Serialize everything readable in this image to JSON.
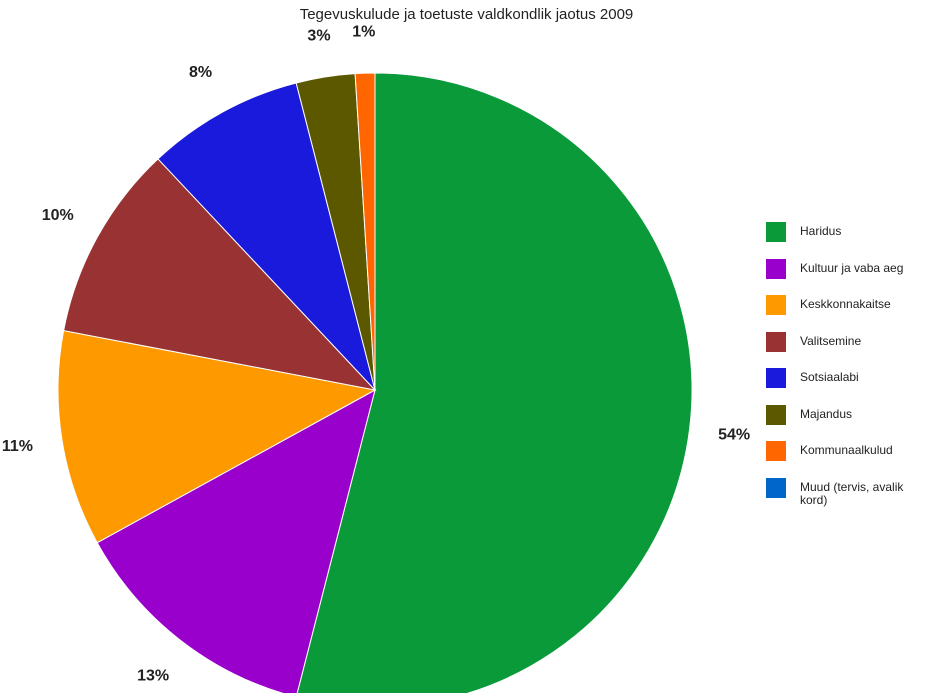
{
  "chart_data": {
    "type": "pie",
    "title": "Tegevuskulude ja toetuste valdkondlik jaotus 2009",
    "legend_position": "right",
    "slices": [
      {
        "label": "Haridus",
        "value": 54,
        "display": "54%",
        "color": "#0a9a3a"
      },
      {
        "label": "Kultuur ja vaba aeg",
        "value": 13,
        "display": "13%",
        "color": "#9900cc"
      },
      {
        "label": "Keskkonnakaitse",
        "value": 11,
        "display": "11%",
        "color": "#ff9900"
      },
      {
        "label": "Valitsemine",
        "value": 10,
        "display": "10%",
        "color": "#993333"
      },
      {
        "label": "Sotsiaalabi",
        "value": 8,
        "display": "8%",
        "color": "#1a1adc"
      },
      {
        "label": "Majandus",
        "value": 3,
        "display": "3%",
        "color": "#5c5800"
      },
      {
        "label": "Kommunaalkulud",
        "value": 1,
        "display": "1%",
        "color": "#ff6600"
      },
      {
        "label": "Muud (tervis, avalik kord)",
        "value": 0,
        "display": "",
        "color": "#0066cc"
      }
    ]
  }
}
